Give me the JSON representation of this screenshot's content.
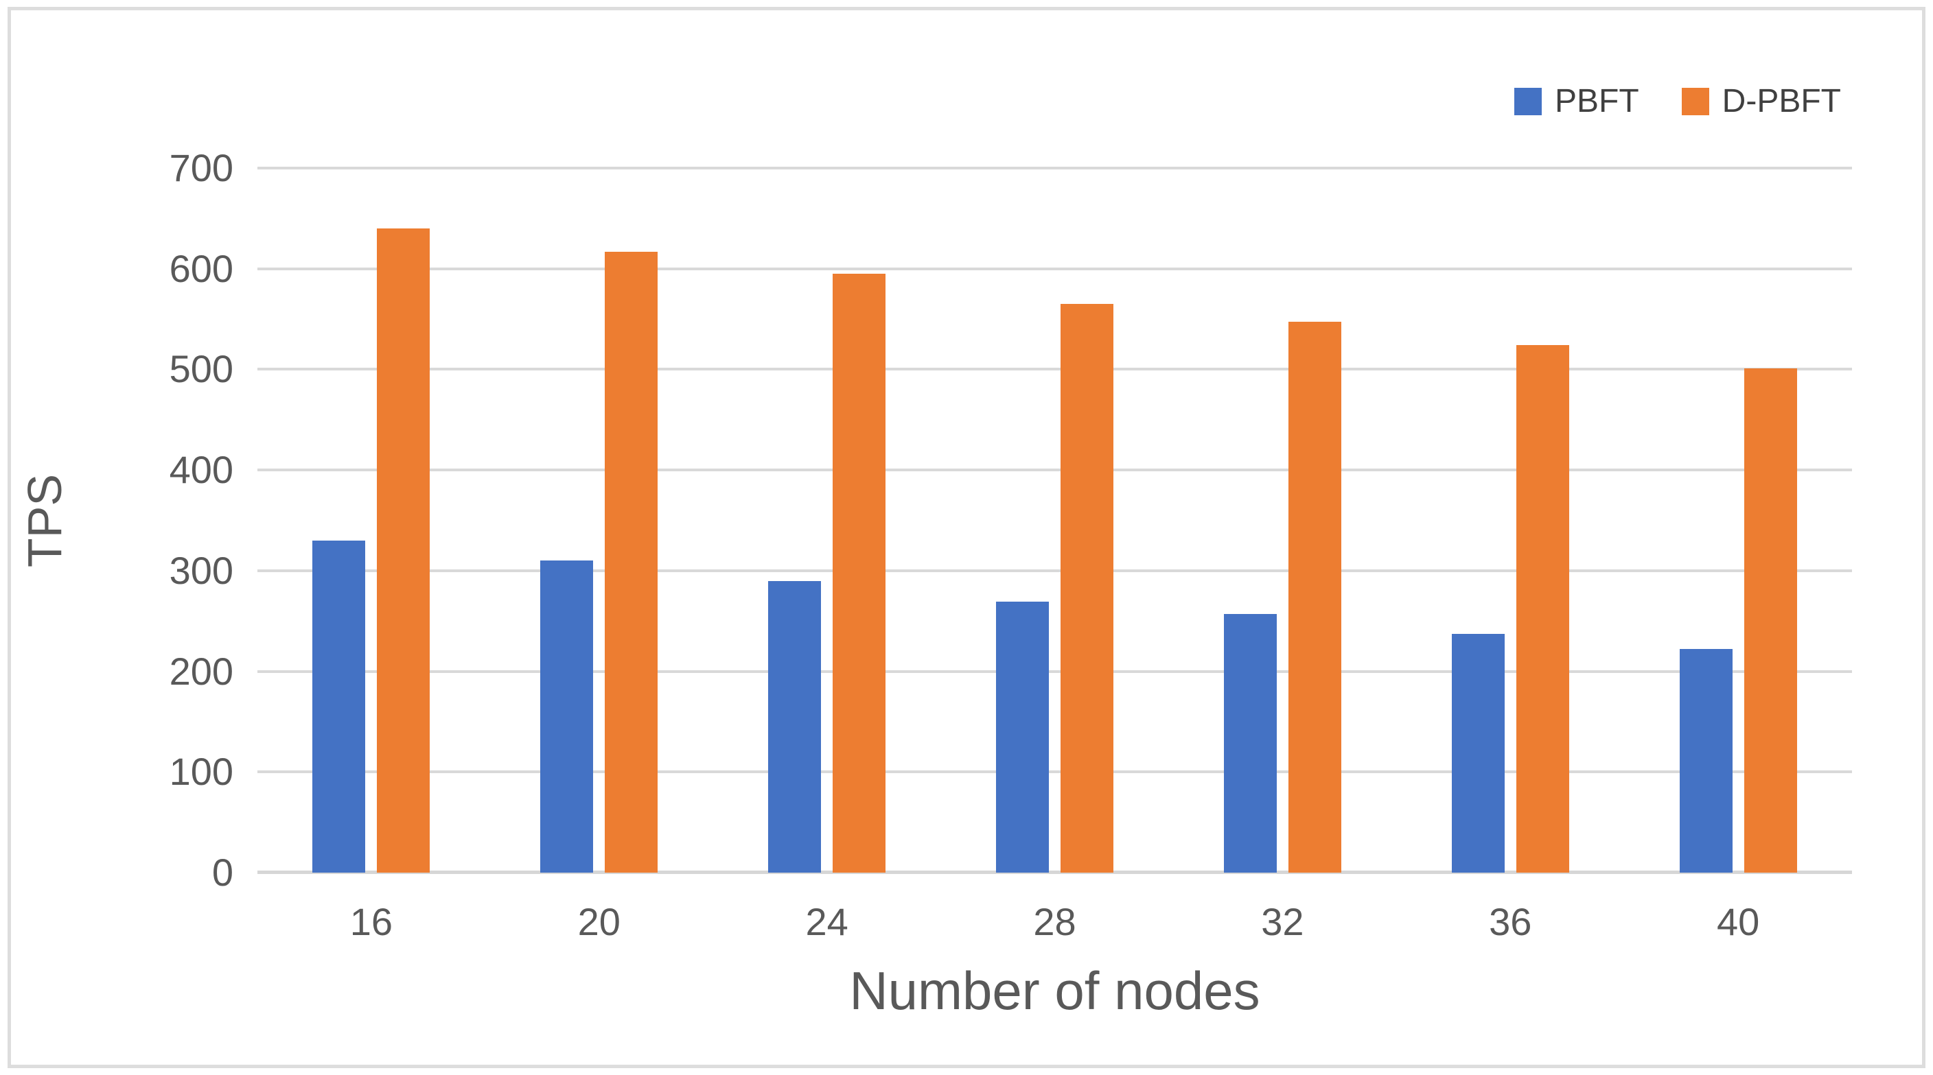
{
  "chart_data": {
    "type": "bar",
    "title": "",
    "categories": [
      "16",
      "20",
      "24",
      "28",
      "32",
      "36",
      "40"
    ],
    "series": [
      {
        "name": "PBFT",
        "color": "#4472C4",
        "values": [
          330,
          310,
          290,
          269,
          257,
          237,
          222
        ]
      },
      {
        "name": "D-PBFT",
        "color": "#ED7D31",
        "values": [
          640,
          617,
          595,
          565,
          547,
          524,
          501
        ]
      }
    ],
    "xlabel": "Number of nodes",
    "ylabel": "TPS",
    "ylim": [
      0,
      700
    ],
    "yticks": [
      0,
      100,
      200,
      300,
      400,
      500,
      600,
      700
    ],
    "grid": true,
    "legend_position": "top-right",
    "styles": {
      "text_color": "#595959",
      "gridline_color": "#d9d9d9",
      "axis_line_color": "#d6d6d6",
      "frame_border_color": "#dddddd",
      "background": "#ffffff"
    }
  }
}
